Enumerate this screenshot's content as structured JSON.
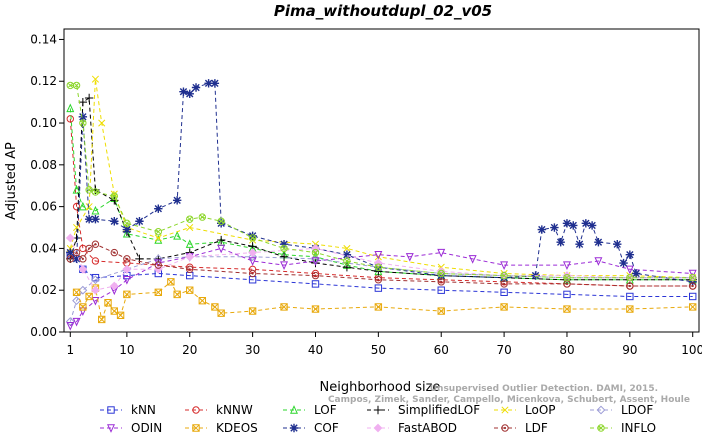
{
  "chart_data": {
    "type": "line",
    "title": "Pima_withoutdupl_02_v05",
    "xlabel": "Neighborhood size",
    "ylabel": "Adjusted AP",
    "xlim": [
      0,
      101
    ],
    "ylim": [
      0,
      0.145
    ],
    "xticks": [
      1,
      10,
      20,
      30,
      40,
      50,
      60,
      70,
      80,
      90,
      100
    ],
    "yticks": [
      0.0,
      0.02,
      0.04,
      0.06,
      0.08,
      0.1,
      0.12,
      0.14
    ],
    "ytick_labels": [
      "0.00",
      "0.02",
      "0.04",
      "0.06",
      "0.08",
      "0.10",
      "0.12",
      "0.14"
    ],
    "grid": false,
    "legend_position": "bottom",
    "watermark": [
      "Unsupervised Outlier Detection. DAMI, 2015.",
      "Campos, Zimek, Sander, Campello, Micenkova, Schubert, Assent, Houle"
    ],
    "series": [
      {
        "name": "kNN",
        "color": "#2b35d6",
        "marker": "square",
        "points": [
          [
            1,
            0.037
          ],
          [
            3,
            0.03
          ],
          [
            5,
            0.026
          ],
          [
            10,
            0.027
          ],
          [
            15,
            0.028
          ],
          [
            20,
            0.027
          ],
          [
            30,
            0.025
          ],
          [
            40,
            0.023
          ],
          [
            50,
            0.021
          ],
          [
            60,
            0.02
          ],
          [
            70,
            0.019
          ],
          [
            80,
            0.018
          ],
          [
            90,
            0.017
          ],
          [
            100,
            0.017
          ]
        ]
      },
      {
        "name": "kNNW",
        "color": "#d62b2b",
        "marker": "circle",
        "points": [
          [
            1,
            0.102
          ],
          [
            2,
            0.06
          ],
          [
            3,
            0.04
          ],
          [
            5,
            0.034
          ],
          [
            10,
            0.033
          ],
          [
            20,
            0.031
          ],
          [
            30,
            0.03
          ],
          [
            40,
            0.028
          ],
          [
            50,
            0.026
          ],
          [
            60,
            0.025
          ],
          [
            70,
            0.024
          ],
          [
            80,
            0.023
          ],
          [
            90,
            0.022
          ],
          [
            100,
            0.022
          ]
        ]
      },
      {
        "name": "LOF",
        "color": "#2bd62b",
        "marker": "triangle-up",
        "points": [
          [
            1,
            0.107
          ],
          [
            2,
            0.068
          ],
          [
            3,
            0.06
          ],
          [
            5,
            0.058
          ],
          [
            8,
            0.064
          ],
          [
            10,
            0.047
          ],
          [
            15,
            0.044
          ],
          [
            18,
            0.046
          ],
          [
            20,
            0.042
          ],
          [
            25,
            0.043
          ],
          [
            30,
            0.04
          ],
          [
            35,
            0.037
          ],
          [
            40,
            0.036
          ],
          [
            45,
            0.032
          ],
          [
            50,
            0.029
          ],
          [
            60,
            0.027
          ],
          [
            70,
            0.026
          ],
          [
            80,
            0.025
          ],
          [
            90,
            0.025
          ],
          [
            100,
            0.025
          ]
        ]
      },
      {
        "name": "SimplifiedLOF",
        "color": "#000000",
        "marker": "plus",
        "points": [
          [
            1,
            0.035
          ],
          [
            2,
            0.045
          ],
          [
            3,
            0.11
          ],
          [
            4,
            0.112
          ],
          [
            5,
            0.068
          ],
          [
            8,
            0.063
          ],
          [
            10,
            0.048
          ],
          [
            12,
            0.035
          ],
          [
            15,
            0.035
          ],
          [
            20,
            0.038
          ],
          [
            25,
            0.044
          ],
          [
            30,
            0.041
          ],
          [
            35,
            0.036
          ],
          [
            40,
            0.033
          ],
          [
            45,
            0.031
          ],
          [
            50,
            0.029
          ],
          [
            60,
            0.027
          ],
          [
            70,
            0.026
          ],
          [
            80,
            0.025
          ],
          [
            90,
            0.025
          ],
          [
            100,
            0.025
          ]
        ]
      },
      {
        "name": "LoOP",
        "color": "#eedd00",
        "marker": "x",
        "points": [
          [
            1,
            0.04
          ],
          [
            2,
            0.05
          ],
          [
            4,
            0.06
          ],
          [
            5,
            0.121
          ],
          [
            6,
            0.1
          ],
          [
            8,
            0.066
          ],
          [
            10,
            0.05
          ],
          [
            15,
            0.045
          ],
          [
            20,
            0.05
          ],
          [
            30,
            0.044
          ],
          [
            40,
            0.042
          ],
          [
            45,
            0.04
          ],
          [
            50,
            0.036
          ],
          [
            60,
            0.031
          ],
          [
            70,
            0.028
          ],
          [
            80,
            0.027
          ],
          [
            90,
            0.027
          ],
          [
            100,
            0.026
          ]
        ]
      },
      {
        "name": "LDOF",
        "color": "#9b9bd6",
        "marker": "diamond",
        "points": [
          [
            1,
            0.005
          ],
          [
            2,
            0.015
          ],
          [
            3,
            0.02
          ],
          [
            5,
            0.025
          ],
          [
            10,
            0.03
          ],
          [
            15,
            0.035
          ],
          [
            20,
            0.036
          ],
          [
            30,
            0.036
          ],
          [
            40,
            0.035
          ],
          [
            50,
            0.031
          ],
          [
            60,
            0.028
          ],
          [
            70,
            0.027
          ],
          [
            80,
            0.026
          ],
          [
            90,
            0.026
          ],
          [
            100,
            0.026
          ]
        ]
      },
      {
        "name": "ODIN",
        "color": "#9b2bd6",
        "marker": "triangle-down",
        "points": [
          [
            1,
            0.003
          ],
          [
            2,
            0.005
          ],
          [
            3,
            0.01
          ],
          [
            5,
            0.015
          ],
          [
            8,
            0.02
          ],
          [
            10,
            0.025
          ],
          [
            15,
            0.033
          ],
          [
            20,
            0.036
          ],
          [
            25,
            0.04
          ],
          [
            30,
            0.034
          ],
          [
            35,
            0.032
          ],
          [
            40,
            0.034
          ],
          [
            50,
            0.037
          ],
          [
            55,
            0.036
          ],
          [
            60,
            0.038
          ],
          [
            65,
            0.035
          ],
          [
            70,
            0.032
          ],
          [
            80,
            0.032
          ],
          [
            85,
            0.034
          ],
          [
            90,
            0.03
          ],
          [
            100,
            0.028
          ]
        ]
      },
      {
        "name": "KDEOS",
        "color": "#e8a90c",
        "marker": "square-cross",
        "points": [
          [
            2,
            0.019
          ],
          [
            3,
            0.012
          ],
          [
            4,
            0.017
          ],
          [
            5,
            0.021
          ],
          [
            6,
            0.006
          ],
          [
            7,
            0.014
          ],
          [
            8,
            0.01
          ],
          [
            9,
            0.008
          ],
          [
            10,
            0.018
          ],
          [
            15,
            0.019
          ],
          [
            17,
            0.024
          ],
          [
            18,
            0.018
          ],
          [
            20,
            0.02
          ],
          [
            22,
            0.015
          ],
          [
            24,
            0.012
          ],
          [
            25,
            0.009
          ],
          [
            30,
            0.01
          ],
          [
            35,
            0.012
          ],
          [
            40,
            0.011
          ],
          [
            50,
            0.012
          ],
          [
            60,
            0.01
          ],
          [
            70,
            0.012
          ],
          [
            80,
            0.011
          ],
          [
            90,
            0.011
          ],
          [
            100,
            0.012
          ]
        ]
      },
      {
        "name": "COF",
        "color": "#1f2f8f",
        "marker": "asterisk",
        "points": [
          [
            1,
            0.038
          ],
          [
            2,
            0.035
          ],
          [
            3,
            0.103
          ],
          [
            4,
            0.054
          ],
          [
            5,
            0.054
          ],
          [
            8,
            0.053
          ],
          [
            10,
            0.049
          ],
          [
            12,
            0.053
          ],
          [
            15,
            0.059
          ],
          [
            18,
            0.063
          ],
          [
            19,
            0.115
          ],
          [
            20,
            0.114
          ],
          [
            21,
            0.117
          ],
          [
            23,
            0.119
          ],
          [
            24,
            0.119
          ],
          [
            25,
            0.052
          ],
          [
            30,
            0.046
          ],
          [
            35,
            0.042
          ],
          [
            40,
            0.04
          ],
          [
            45,
            0.037
          ],
          [
            50,
            0.031
          ],
          [
            60,
            0.027
          ],
          [
            70,
            0.026
          ],
          [
            75,
            0.027
          ],
          [
            76,
            0.049
          ],
          [
            78,
            0.05
          ],
          [
            79,
            0.043
          ],
          [
            80,
            0.052
          ],
          [
            81,
            0.051
          ],
          [
            82,
            0.042
          ],
          [
            83,
            0.052
          ],
          [
            84,
            0.051
          ],
          [
            85,
            0.043
          ],
          [
            88,
            0.042
          ],
          [
            89,
            0.033
          ],
          [
            90,
            0.037
          ],
          [
            91,
            0.028
          ],
          [
            100,
            0.024
          ]
        ]
      },
      {
        "name": "FastABOD",
        "color": "#f0b0f0",
        "marker": "diamond-filled",
        "points": [
          [
            1,
            0.045
          ],
          [
            3,
            0.03
          ],
          [
            5,
            0.02
          ],
          [
            8,
            0.022
          ],
          [
            10,
            0.03
          ],
          [
            15,
            0.03
          ],
          [
            20,
            0.036
          ],
          [
            30,
            0.038
          ],
          [
            40,
            0.04
          ],
          [
            50,
            0.033
          ],
          [
            60,
            0.029
          ],
          [
            70,
            0.027
          ],
          [
            80,
            0.027
          ],
          [
            90,
            0.026
          ],
          [
            100,
            0.026
          ]
        ]
      },
      {
        "name": "LDF",
        "color": "#a03030",
        "marker": "circle-dot",
        "points": [
          [
            1,
            0.035
          ],
          [
            2,
            0.038
          ],
          [
            3,
            0.035
          ],
          [
            4,
            0.04
          ],
          [
            5,
            0.042
          ],
          [
            8,
            0.038
          ],
          [
            10,
            0.035
          ],
          [
            15,
            0.032
          ],
          [
            20,
            0.03
          ],
          [
            30,
            0.028
          ],
          [
            40,
            0.027
          ],
          [
            50,
            0.025
          ],
          [
            60,
            0.024
          ],
          [
            70,
            0.023
          ],
          [
            80,
            0.023
          ],
          [
            90,
            0.022
          ],
          [
            100,
            0.022
          ]
        ]
      },
      {
        "name": "INFLO",
        "color": "#8cd62b",
        "marker": "circle-x",
        "points": [
          [
            1,
            0.118
          ],
          [
            2,
            0.118
          ],
          [
            3,
            0.1
          ],
          [
            4,
            0.068
          ],
          [
            5,
            0.067
          ],
          [
            8,
            0.065
          ],
          [
            10,
            0.052
          ],
          [
            15,
            0.048
          ],
          [
            20,
            0.054
          ],
          [
            22,
            0.055
          ],
          [
            25,
            0.053
          ],
          [
            30,
            0.045
          ],
          [
            35,
            0.04
          ],
          [
            40,
            0.038
          ],
          [
            45,
            0.034
          ],
          [
            50,
            0.031
          ],
          [
            60,
            0.028
          ],
          [
            70,
            0.027
          ],
          [
            80,
            0.026
          ],
          [
            90,
            0.026
          ],
          [
            100,
            0.026
          ]
        ]
      }
    ]
  }
}
